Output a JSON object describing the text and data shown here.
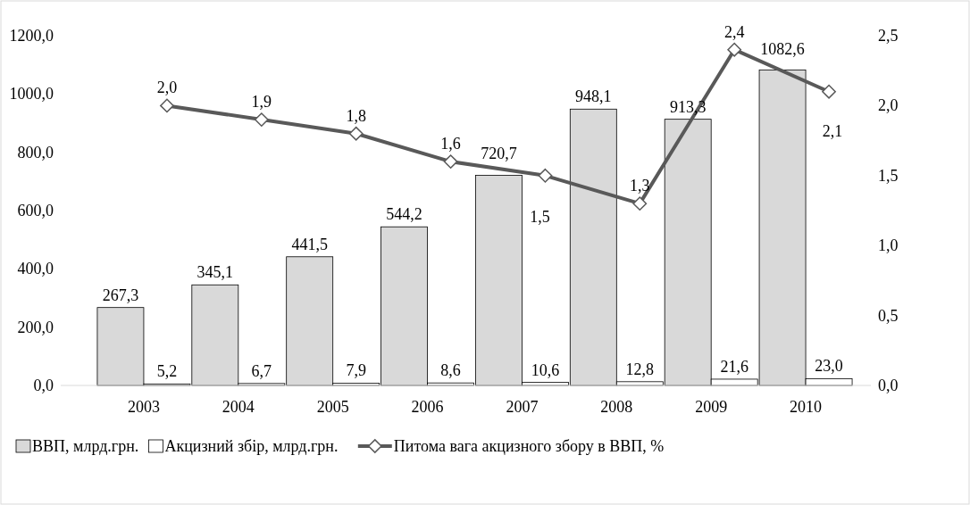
{
  "chart_data": {
    "type": "bar",
    "categories": [
      "2003",
      "2004",
      "2005",
      "2006",
      "2007",
      "2008",
      "2009",
      "2010"
    ],
    "series": [
      {
        "name": "ВВП, млрд.грн.",
        "color": "#d9d9d9",
        "values": [
          267.3,
          345.1,
          441.5,
          544.2,
          720.7,
          948.1,
          913.3,
          1082.6
        ],
        "value_labels": [
          "267,3",
          "345,1",
          "441,5",
          "544,2",
          "720,7",
          "948,1",
          "913,3",
          "1082,6"
        ]
      },
      {
        "name": "Акцизний збір, млрд.грн.",
        "color": "#ffffff",
        "values": [
          5.2,
          6.7,
          7.9,
          8.6,
          10.6,
          12.8,
          21.6,
          23.0
        ],
        "value_labels": [
          "5,2",
          "6,7",
          "7,9",
          "8,6",
          "10,6",
          "12,8",
          "21,6",
          "23,0"
        ]
      },
      {
        "name": "Питома вага акцизного збору в ВВП, %",
        "type": "line",
        "axis": "y2",
        "color": "#595959",
        "marker": "diamond",
        "values": [
          2.0,
          1.9,
          1.8,
          1.6,
          1.5,
          1.3,
          2.4,
          2.1
        ],
        "value_labels": [
          "2,0",
          "1,9",
          "1,8",
          "1,6",
          "1,5",
          "1,3",
          "2,4",
          "2,1"
        ]
      }
    ],
    "ylim": [
      0,
      1200
    ],
    "yticks": [
      {
        "value": 0,
        "label": "0,0"
      },
      {
        "value": 200,
        "label": "200,0"
      },
      {
        "value": 400,
        "label": "400,0"
      },
      {
        "value": 600,
        "label": "600,0"
      },
      {
        "value": 800,
        "label": "800,0"
      },
      {
        "value": 1000,
        "label": "1000,0"
      },
      {
        "value": 1200,
        "label": "1200,0"
      }
    ],
    "y2lim": [
      0,
      2.5
    ],
    "y2ticks": [
      {
        "value": 0,
        "label": "0,0"
      },
      {
        "value": 0.5,
        "label": "0,5"
      },
      {
        "value": 1,
        "label": "1,0"
      },
      {
        "value": 1.5,
        "label": "1,5"
      },
      {
        "value": 2,
        "label": "2,0"
      },
      {
        "value": 2.5,
        "label": "2,5"
      }
    ],
    "legend": "bottom"
  }
}
